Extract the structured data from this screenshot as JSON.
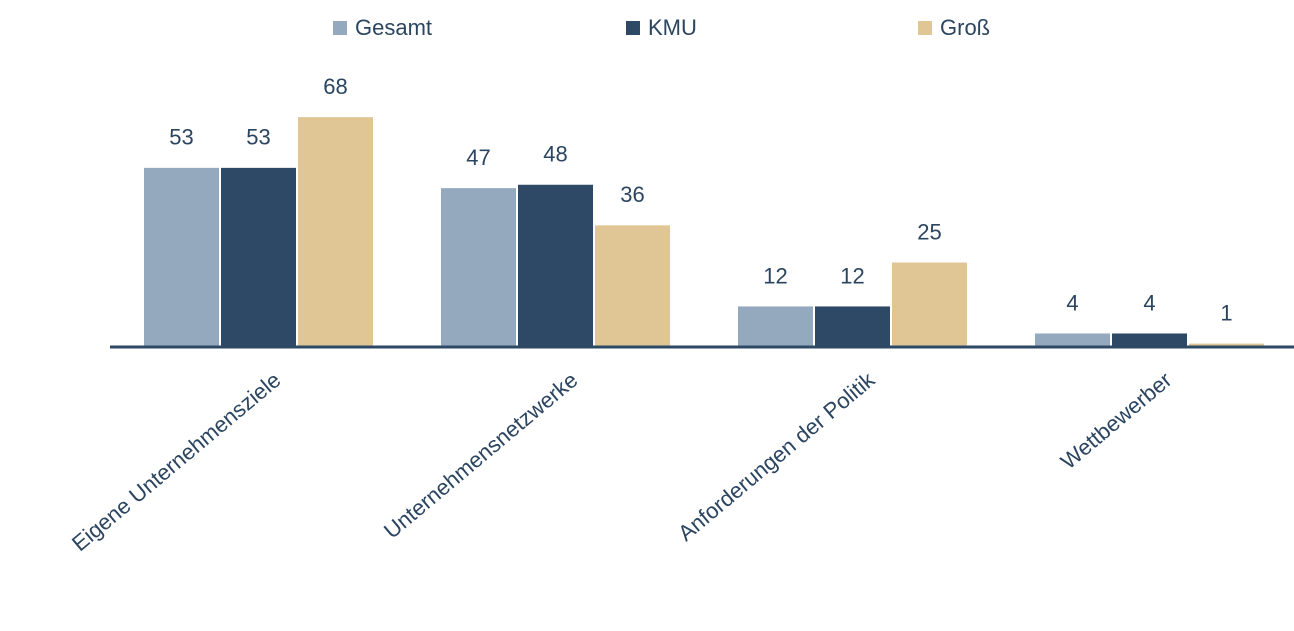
{
  "chart_data": {
    "type": "bar",
    "categories": [
      "Eigene Unternehmensziele",
      "Unternehmensnetzwerke",
      "Anforderungen der Politik",
      "Wettbewerber"
    ],
    "series": [
      {
        "name": "Gesamt",
        "color": "#94a9bd",
        "values": [
          53,
          47,
          12,
          4
        ]
      },
      {
        "name": "KMU",
        "color": "#2e4966",
        "values": [
          53,
          48,
          12,
          4
        ]
      },
      {
        "name": "Groß",
        "color": "#e0c595",
        "values": [
          68,
          36,
          25,
          1
        ]
      }
    ],
    "legend": "top"
  }
}
